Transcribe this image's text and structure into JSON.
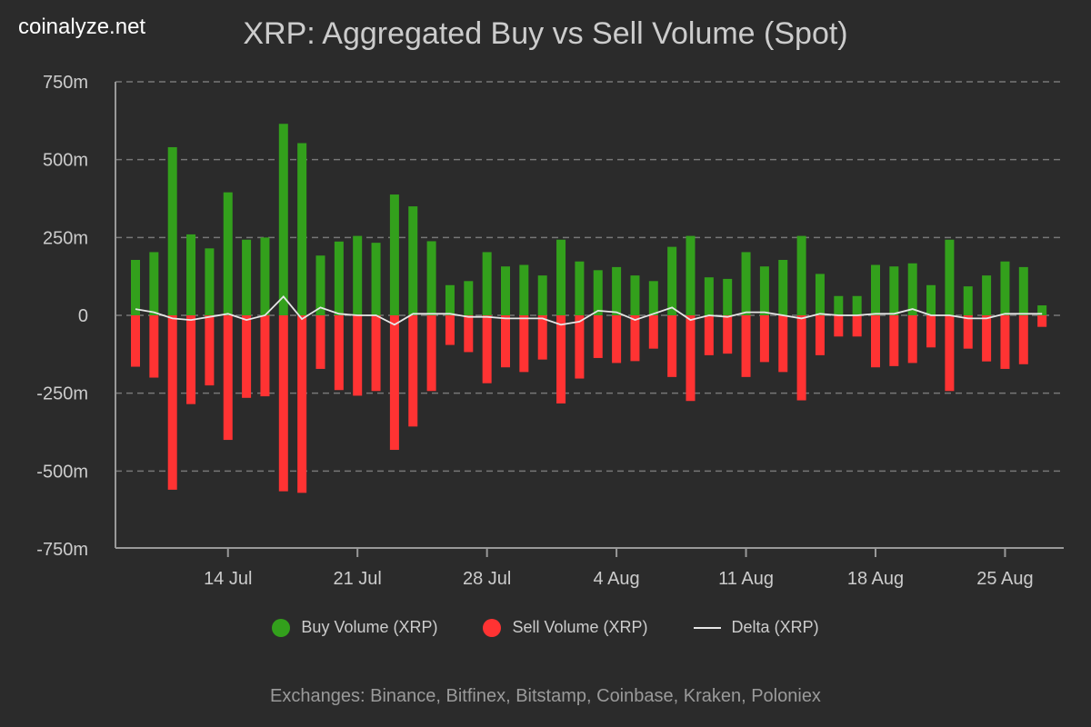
{
  "brand": "coinalyze.net",
  "title": "XRP: Aggregated Buy vs Sell Volume (Spot)",
  "footer": "Exchanges: Binance, Bitfinex, Bitstamp, Coinbase, Kraken, Poloniex",
  "legend": {
    "buy": "Buy Volume (XRP)",
    "sell": "Sell Volume (XRP)",
    "delta": "Delta (XRP)"
  },
  "colors": {
    "buy": "#33a01c",
    "sell": "#ff3333",
    "delta": "#e6e6e6",
    "grid": "#777777",
    "axis": "#999999",
    "text": "#cccccc"
  },
  "chart_data": {
    "type": "bar",
    "x_start_day": 9,
    "x_tick_labels": [
      "14 Jul",
      "21 Jul",
      "28 Jul",
      "4 Aug",
      "11 Aug",
      "18 Aug",
      "25 Aug"
    ],
    "x_tick_days": [
      14,
      21,
      28,
      35,
      42,
      49,
      56
    ],
    "y_tick_labels": [
      "750m",
      "500m",
      "250m",
      "0",
      "-250m",
      "-500m",
      "-750m"
    ],
    "y_ticks": [
      750,
      500,
      250,
      0,
      -250,
      -500,
      -750
    ],
    "ylim": [
      -750,
      750
    ],
    "grid": true,
    "legend_position": "bottom",
    "series": [
      {
        "name": "Buy Volume (XRP)",
        "values": [
          178,
          203,
          540,
          260,
          215,
          395,
          243,
          250,
          615,
          553,
          192,
          237,
          255,
          233,
          388,
          350,
          238,
          97,
          110,
          203,
          157,
          162,
          128,
          243,
          173,
          145,
          155,
          128,
          110,
          220,
          255,
          122,
          117,
          203,
          157,
          178,
          255,
          133,
          62,
          62,
          162,
          157,
          167,
          97,
          243,
          93,
          128,
          173,
          155,
          32
        ]
      },
      {
        "name": "Sell Volume (XRP)",
        "values": [
          -165,
          -200,
          -560,
          -285,
          -225,
          -400,
          -265,
          -260,
          -565,
          -570,
          -172,
          -240,
          -258,
          -243,
          -432,
          -357,
          -243,
          -95,
          -118,
          -218,
          -167,
          -182,
          -142,
          -283,
          -203,
          -137,
          -153,
          -147,
          -107,
          -198,
          -275,
          -128,
          -123,
          -198,
          -150,
          -182,
          -273,
          -128,
          -68,
          -68,
          -167,
          -163,
          -153,
          -103,
          -243,
          -107,
          -148,
          -172,
          -157,
          -37
        ]
      },
      {
        "name": "Delta (XRP)",
        "values": [
          20,
          10,
          -10,
          -15,
          -5,
          5,
          -15,
          0,
          60,
          -12,
          25,
          5,
          0,
          0,
          -30,
          5,
          5,
          5,
          -5,
          -5,
          -10,
          -10,
          -10,
          -30,
          -20,
          15,
          10,
          -15,
          5,
          25,
          -15,
          0,
          -5,
          10,
          10,
          0,
          -10,
          5,
          0,
          0,
          5,
          5,
          20,
          0,
          0,
          -10,
          -10,
          5,
          5,
          5
        ]
      }
    ]
  }
}
